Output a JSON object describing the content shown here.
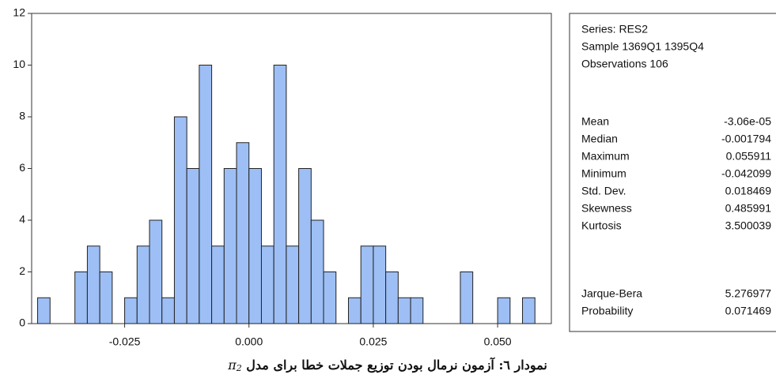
{
  "chart_data": {
    "type": "histogram",
    "bins": [
      -0.0425,
      -0.04,
      -0.0375,
      -0.035,
      -0.0325,
      -0.03,
      -0.0275,
      -0.025,
      -0.0225,
      -0.02,
      -0.0175,
      -0.015,
      -0.0125,
      -0.01,
      -0.0075,
      -0.005,
      -0.0025,
      0,
      0.0025,
      0.005,
      0.0075,
      0.01,
      0.0125,
      0.015,
      0.0175,
      0.02,
      0.0225,
      0.025,
      0.0275,
      0.03,
      0.0325,
      0.035,
      0.0375,
      0.04,
      0.0425,
      0.045,
      0.0475,
      0.05,
      0.0525,
      0.055,
      0.0575
    ],
    "values": [
      1,
      0,
      0,
      2,
      3,
      2,
      0,
      1,
      3,
      4,
      1,
      8,
      6,
      10,
      3,
      6,
      7,
      6,
      3,
      10,
      3,
      6,
      4,
      2,
      0,
      1,
      3,
      3,
      2,
      1,
      1,
      0,
      0,
      0,
      2,
      0,
      0,
      1,
      0,
      1
    ],
    "color": "#9dbff5",
    "xlim": [
      -0.0437,
      0.0608
    ],
    "ylim": [
      0,
      12
    ],
    "xticks": [
      -0.025,
      {
        "value": 0,
        "label": "0.000"
      },
      0.025,
      {
        "value": 0.05,
        "label": "0.050"
      }
    ],
    "yticks": [
      0,
      2,
      4,
      6,
      8,
      10,
      12
    ]
  },
  "stats": {
    "header": [
      "Series: RES2",
      "Sample 1369Q1 1395Q4",
      "Observations 106"
    ],
    "rows": [
      [
        "Mean",
        "-3.06e-05"
      ],
      [
        "Median",
        "-0.001794"
      ],
      [
        "Maximum",
        "0.055911"
      ],
      [
        "Minimum",
        "-0.042099"
      ],
      [
        "Std. Dev.",
        "0.018469"
      ],
      [
        "Skewness",
        "0.485991"
      ],
      [
        "Kurtosis",
        "3.500039"
      ]
    ],
    "test_rows": [
      [
        "Jarque-Bera",
        "5.276977"
      ],
      [
        "Probability",
        "0.071469"
      ]
    ]
  },
  "caption": {
    "text": "نمودار ٦: آزمون نرمال بودن توزیع جملات خطا برای مدل",
    "symbol": "π",
    "subscript": "2"
  }
}
